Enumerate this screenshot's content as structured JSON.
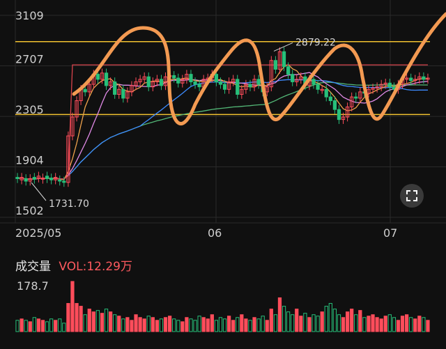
{
  "colors": {
    "up": "#ff4d5b",
    "down": "#27c07a",
    "ma_short": "#f0a34d",
    "ma_mid": "#e08ae6",
    "ma_long": "#3d8bff",
    "ma_xlong": "#53b877",
    "ma_red": "#d9434c",
    "hline": "#f2c230",
    "annotation": "#f39a52",
    "grid": "#2a2a2a"
  },
  "icons": {
    "expand": "expand-icon"
  },
  "volume_panel": {
    "title": "成交量",
    "vol_label": "VOL:12.29万",
    "max_label": "178.7"
  },
  "chart_data": {
    "type": "candlestick",
    "title": "",
    "y_ticks": [
      3109,
      2707,
      2305,
      1904,
      1502
    ],
    "ylim": [
      1502,
      3109
    ],
    "x_labels": [
      "2025/05",
      "06",
      "07"
    ],
    "annotations": [
      {
        "text": "2879.22",
        "value": 2879.22,
        "kind": "high"
      },
      {
        "text": "1731.70",
        "value": 1731.7,
        "kind": "low"
      }
    ],
    "reference_lines": [
      2900,
      2320
    ],
    "candles_open": [
      1820,
      1800,
      1810,
      1790,
      1820,
      1815,
      1805,
      1830,
      1815,
      1800,
      1800,
      1790,
      1780,
      2150,
      2300,
      2430,
      2520,
      2500,
      2560,
      2640,
      2600,
      2650,
      2550,
      2580,
      2480,
      2520,
      2450,
      2500,
      2550,
      2580,
      2600,
      2620,
      2540,
      2580,
      2600,
      2550,
      2620,
      2630,
      2610,
      2570,
      2600,
      2640,
      2580,
      2560,
      2540,
      2600,
      2610,
      2640,
      2580,
      2560,
      2520,
      2580,
      2600,
      2480,
      2520,
      2560,
      2540,
      2600,
      2560,
      2500,
      2540,
      2750,
      2680,
      2820,
      2700,
      2640,
      2580,
      2600,
      2620,
      2550,
      2600,
      2560,
      2520,
      2520,
      2460,
      2430,
      2360,
      2280,
      2300,
      2380,
      2460,
      2450,
      2500,
      2490,
      2520,
      2530,
      2540,
      2560,
      2570,
      2540,
      2520,
      2560,
      2600,
      2610,
      2590,
      2600,
      2620,
      2600
    ],
    "candles_close": [
      1810,
      1820,
      1790,
      1810,
      1805,
      1830,
      1815,
      1810,
      1800,
      1820,
      1790,
      1780,
      2150,
      2300,
      2430,
      2520,
      2500,
      2560,
      2640,
      2600,
      2650,
      2550,
      2580,
      2480,
      2520,
      2450,
      2500,
      2550,
      2580,
      2600,
      2620,
      2540,
      2580,
      2600,
      2550,
      2620,
      2630,
      2610,
      2570,
      2600,
      2640,
      2580,
      2560,
      2540,
      2600,
      2610,
      2640,
      2580,
      2560,
      2520,
      2580,
      2600,
      2480,
      2520,
      2560,
      2540,
      2600,
      2560,
      2500,
      2540,
      2750,
      2680,
      2820,
      2700,
      2640,
      2580,
      2600,
      2620,
      2550,
      2600,
      2560,
      2520,
      2520,
      2460,
      2430,
      2360,
      2280,
      2300,
      2380,
      2460,
      2450,
      2500,
      2490,
      2520,
      2530,
      2540,
      2560,
      2570,
      2540,
      2520,
      2560,
      2600,
      2610,
      2590,
      2600,
      2620,
      2600,
      2610
    ],
    "volume": [
      40,
      45,
      40,
      35,
      50,
      45,
      40,
      35,
      45,
      40,
      45,
      30,
      100,
      178,
      100,
      90,
      60,
      80,
      70,
      75,
      65,
      80,
      70,
      60,
      55,
      45,
      50,
      40,
      60,
      50,
      45,
      55,
      50,
      40,
      45,
      50,
      55,
      45,
      40,
      35,
      50,
      45,
      40,
      55,
      50,
      45,
      60,
      40,
      50,
      45,
      55,
      40,
      50,
      60,
      45,
      40,
      50,
      45,
      55,
      40,
      80,
      60,
      120,
      90,
      70,
      60,
      80,
      55,
      65,
      50,
      60,
      55,
      70,
      90,
      100,
      80,
      60,
      50,
      70,
      80,
      60,
      75,
      50,
      55,
      60,
      50,
      45,
      55,
      60,
      50,
      40,
      55,
      60,
      50,
      45,
      55,
      50,
      40
    ]
  }
}
